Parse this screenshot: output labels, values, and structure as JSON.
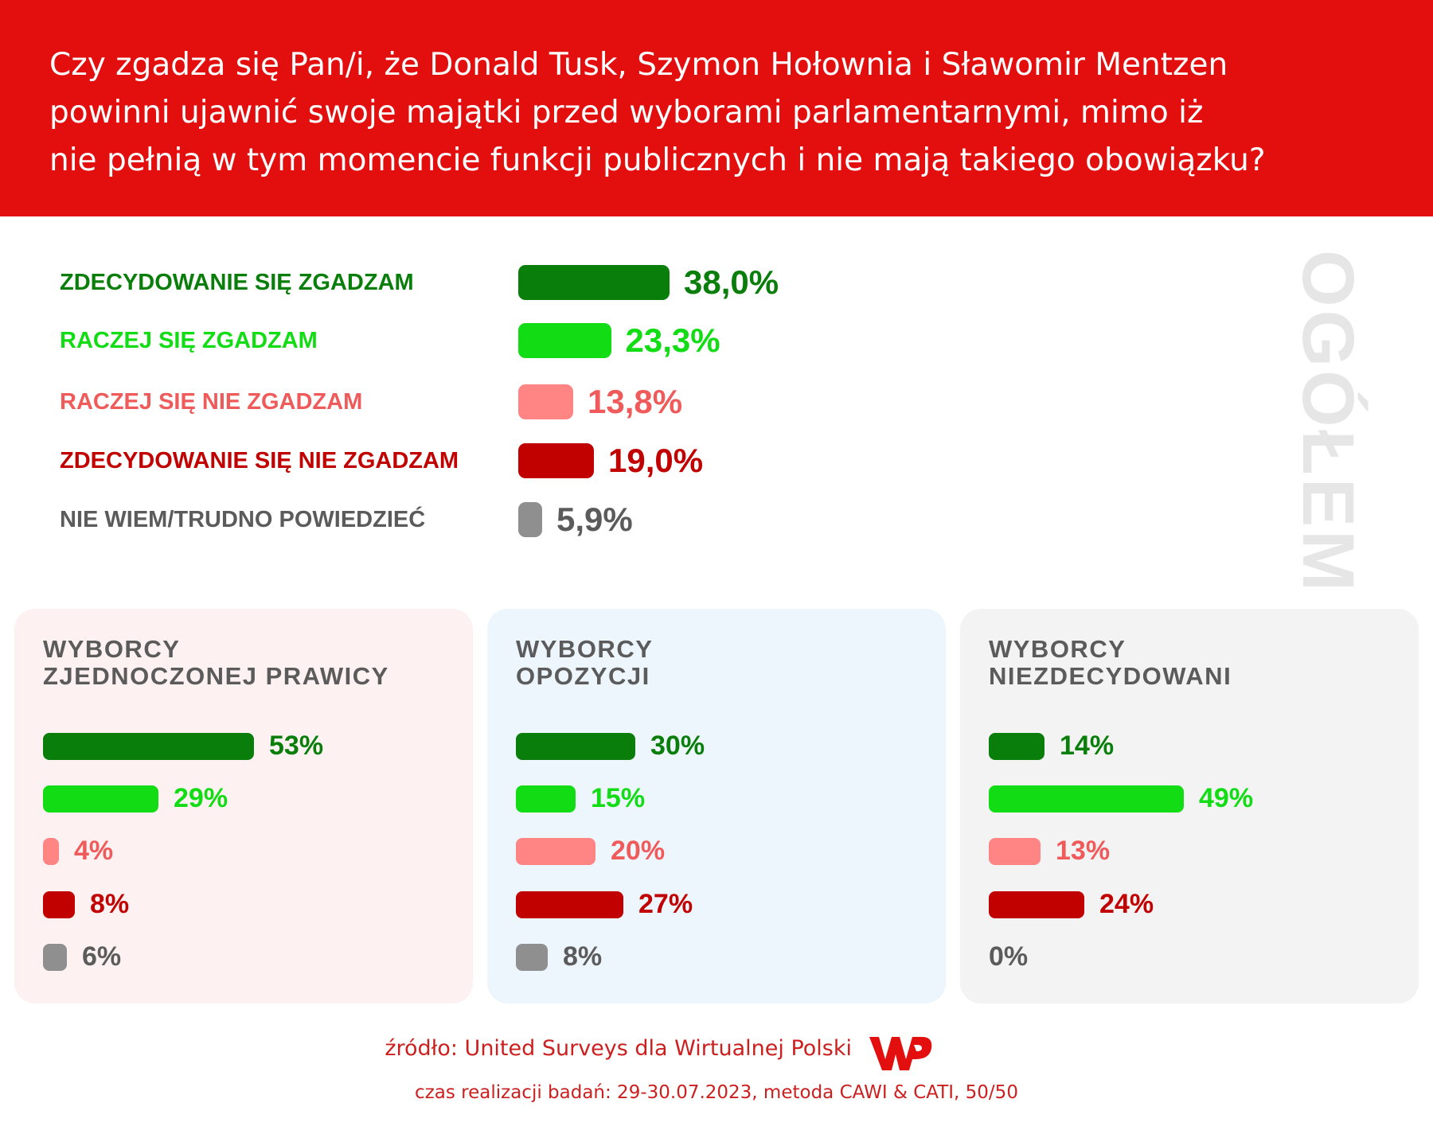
{
  "header": {
    "question_lines": [
      "Czy zgadza się Pan/i, że Donald Tusk, Szymon Hołownia i Sławomir Mentzen",
      "powinni ujawnić swoje majątki przed wyborami parlamentarnymi, mimo iż",
      "nie pełnią w tym momencie funkcji publicznych i nie mają takiego obowiązku?"
    ]
  },
  "colors": {
    "header_bg": "#e30e0e",
    "strongly_agree": "#0a7e0a",
    "rather_agree": "#12dc14",
    "rather_disagree": "#ff8585",
    "rather_disagree_text": "#ef5b5b",
    "strongly_disagree": "#c10000",
    "dont_know": "#8f8f8f",
    "dont_know_text": "#5b5b5b",
    "panel_right": "#fdf1f1",
    "panel_opposition": "#edf5fd",
    "panel_undecided": "#f3f3f3"
  },
  "chart_data": [
    {
      "type": "bar",
      "orientation": "horizontal",
      "title": "OGÓŁEM",
      "categories": [
        "ZDECYDOWANIE SIĘ ZGADZAM",
        "RACZEJ SIĘ ZGADZAM",
        "RACZEJ SIĘ NIE ZGADZAM",
        "ZDECYDOWANIE SIĘ NIE ZGADZAM",
        "NIE WIEM/TRUDNO POWIEDZIEĆ"
      ],
      "values": [
        38.0,
        23.3,
        13.8,
        19.0,
        5.9
      ],
      "value_labels": [
        "38,0%",
        "23,3%",
        "13,8%",
        "19,0%",
        "5,9%"
      ]
    },
    {
      "type": "bar",
      "orientation": "horizontal",
      "title_lines": [
        "WYBORCY",
        "ZJEDNOCZONEJ PRAWICY"
      ],
      "values": [
        53,
        29,
        4,
        8,
        6
      ],
      "value_labels": [
        "53%",
        "29%",
        "4%",
        "8%",
        "6%"
      ]
    },
    {
      "type": "bar",
      "orientation": "horizontal",
      "title_lines": [
        "WYBORCY",
        "OPOZYCJI"
      ],
      "values": [
        30,
        15,
        20,
        27,
        8
      ],
      "value_labels": [
        "30%",
        "15%",
        "20%",
        "27%",
        "8%"
      ]
    },
    {
      "type": "bar",
      "orientation": "horizontal",
      "title_lines": [
        "WYBORCY",
        "NIEZDECYDOWANI"
      ],
      "values": [
        14,
        49,
        13,
        24,
        0
      ],
      "value_labels": [
        "14%",
        "49%",
        "13%",
        "24%",
        "0%"
      ]
    }
  ],
  "footer": {
    "source": "źródło: United Surveys dla Wirtualnej Polski",
    "meta": "czas realizacji badań: 29-30.07.2023, metoda CAWI & CATI, 50/50",
    "logo_icon": "wp-logo-icon"
  }
}
